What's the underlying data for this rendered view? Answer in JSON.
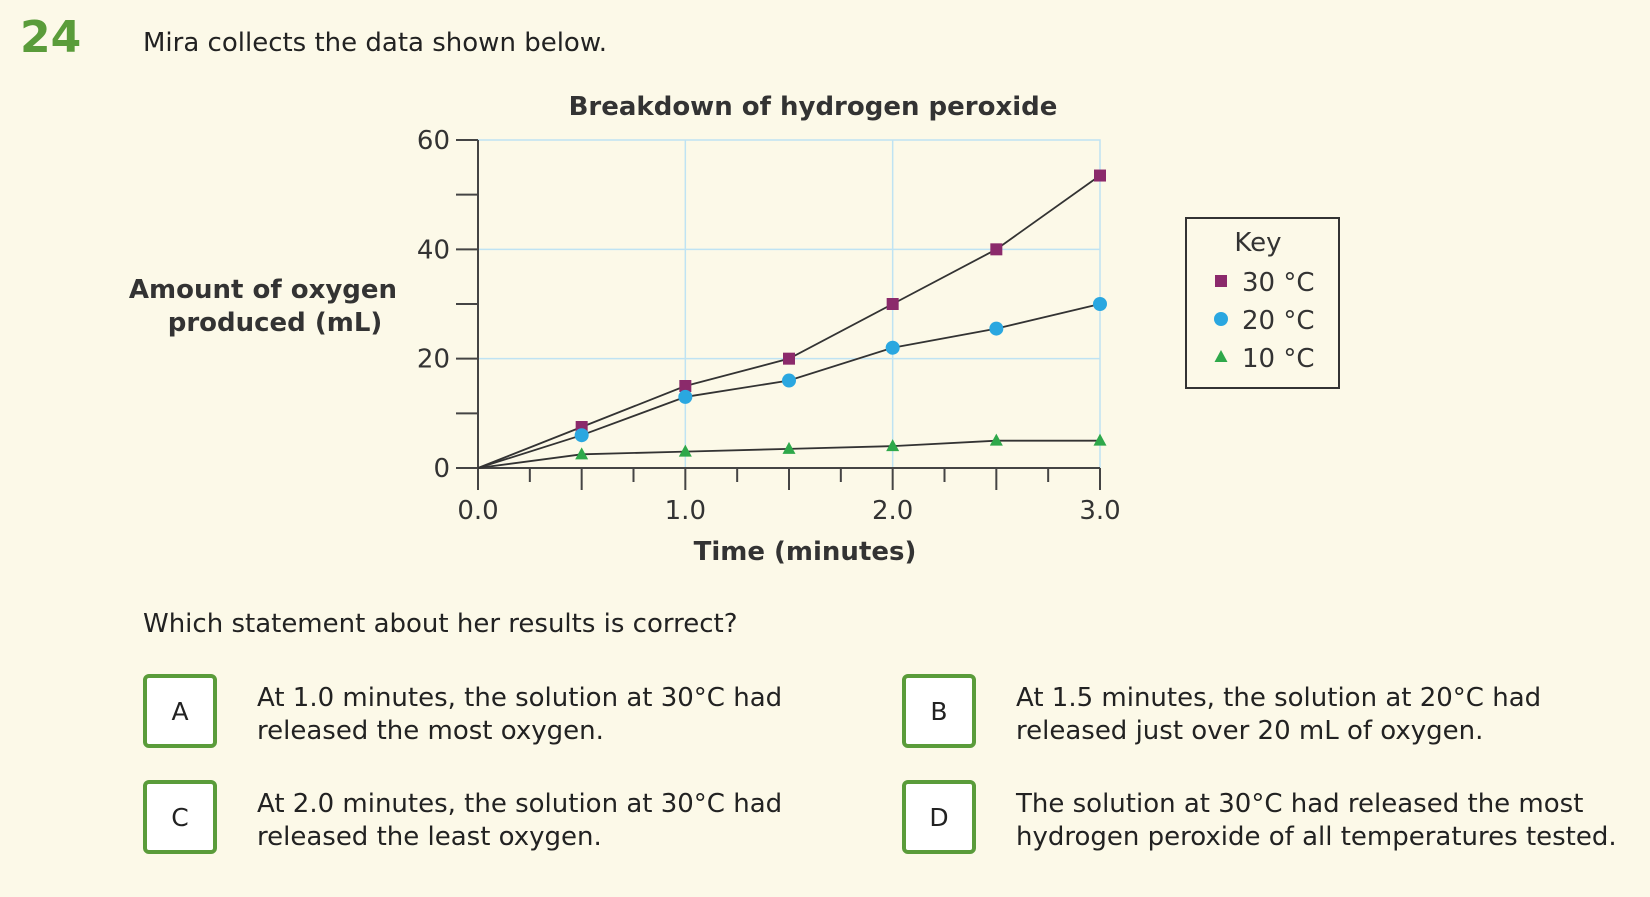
{
  "question": {
    "number": "24",
    "intro": "Mira collects the data shown below.",
    "prompt": "Which statement about her results is correct?"
  },
  "chart_data": {
    "type": "line",
    "title": "Breakdown of hydrogen peroxide",
    "xlabel": "Time (minutes)",
    "ylabel_lines": [
      "Amount of oxygen",
      "produced (mL)"
    ],
    "x": [
      0.0,
      0.5,
      1.0,
      1.5,
      2.0,
      2.5,
      3.0
    ],
    "xlim": [
      0,
      3
    ],
    "ylim": [
      0,
      60
    ],
    "x_ticks": [
      "0.0",
      "1.0",
      "2.0",
      "3.0"
    ],
    "y_ticks": [
      "0",
      "20",
      "40",
      "60"
    ],
    "grid": true,
    "legend_title": "Key",
    "legend_position": "right",
    "series": [
      {
        "name": "30 °C",
        "marker": "square",
        "color": "#8b2a6b",
        "values": [
          0,
          7.5,
          15,
          20,
          30,
          40,
          53.5
        ]
      },
      {
        "name": "20 °C",
        "marker": "circle",
        "color": "#2aa7e0",
        "values": [
          0,
          6,
          13,
          16,
          22,
          25.5,
          30
        ]
      },
      {
        "name": "10 °C",
        "marker": "triangle",
        "color": "#2ea84a",
        "values": [
          0,
          2.5,
          3,
          3.5,
          4,
          5,
          5
        ]
      }
    ]
  },
  "options": [
    {
      "letter": "A",
      "lines": [
        "At 1.0 minutes, the solution at 30°C had",
        "released the most oxygen."
      ]
    },
    {
      "letter": "B",
      "lines": [
        "At 1.5 minutes, the solution at 20°C had",
        "released just over 20 mL of oxygen."
      ]
    },
    {
      "letter": "C",
      "lines": [
        "At 2.0 minutes, the solution at 30°C had",
        "released the least oxygen."
      ]
    },
    {
      "letter": "D",
      "lines": [
        "The solution at 30°C had released the most",
        "hydrogen peroxide of all temperatures tested."
      ]
    }
  ]
}
